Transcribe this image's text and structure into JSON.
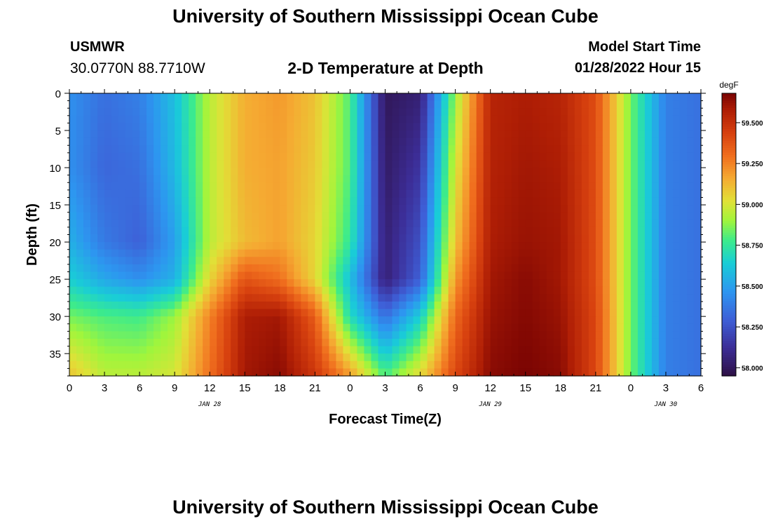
{
  "title": "University of Southern Mississippi Ocean Cube",
  "footer_title": "University of Southern Mississippi Ocean Cube",
  "station": {
    "id": "USMWR",
    "coords": "30.0770N  88.7710W"
  },
  "subtitle": "2-D Temperature at Depth",
  "model_start": {
    "label": "Model Start Time",
    "value": "01/28/2022 Hour 15"
  },
  "chart_data": {
    "type": "heatmap",
    "title": "2-D Temperature at Depth",
    "xlabel": "Forecast Time(Z)",
    "ylabel": "Depth (ft)",
    "units_label": "degF",
    "x_range": [
      0,
      54
    ],
    "y_range": [
      0,
      38
    ],
    "x_ticks": [
      {
        "h": 0,
        "label": "0"
      },
      {
        "h": 3,
        "label": "3"
      },
      {
        "h": 6,
        "label": "6"
      },
      {
        "h": 9,
        "label": "9"
      },
      {
        "h": 12,
        "label": "12"
      },
      {
        "h": 15,
        "label": "15"
      },
      {
        "h": 18,
        "label": "18"
      },
      {
        "h": 21,
        "label": "21"
      },
      {
        "h": 24,
        "label": "0"
      },
      {
        "h": 27,
        "label": "3"
      },
      {
        "h": 30,
        "label": "6"
      },
      {
        "h": 33,
        "label": "9"
      },
      {
        "h": 36,
        "label": "12"
      },
      {
        "h": 39,
        "label": "15"
      },
      {
        "h": 42,
        "label": "18"
      },
      {
        "h": 45,
        "label": "21"
      },
      {
        "h": 48,
        "label": "0"
      },
      {
        "h": 51,
        "label": "3"
      },
      {
        "h": 54,
        "label": "6"
      }
    ],
    "date_labels": [
      {
        "h": 12,
        "label": "JAN 28"
      },
      {
        "h": 36,
        "label": "JAN 29"
      },
      {
        "h": 51,
        "label": "JAN 30"
      }
    ],
    "y_ticks": [
      0,
      5,
      10,
      15,
      20,
      25,
      30,
      35
    ],
    "colorbar": {
      "min": 57.95,
      "max": 59.68,
      "ticks": [
        {
          "v": 58.0,
          "label": "58.000"
        },
        {
          "v": 58.25,
          "label": "58.250"
        },
        {
          "v": 58.5,
          "label": "58.500"
        },
        {
          "v": 58.75,
          "label": "58.750"
        },
        {
          "v": 59.0,
          "label": "59.000"
        },
        {
          "v": 59.25,
          "label": "59.250"
        },
        {
          "v": 59.5,
          "label": "59.500"
        }
      ]
    },
    "depths": [
      0,
      10,
      20,
      25,
      30,
      38
    ],
    "grid_times": [
      0,
      3,
      6,
      9,
      12,
      15,
      18,
      21,
      24,
      27,
      30,
      33,
      36,
      39,
      42,
      45,
      48,
      51,
      54
    ],
    "temperatures": [
      [
        58.45,
        58.35,
        58.4,
        58.6,
        58.95,
        59.15,
        59.2,
        59.1,
        58.8,
        58.0,
        58.05,
        58.9,
        59.55,
        59.58,
        59.55,
        59.4,
        58.85,
        58.4,
        58.35
      ],
      [
        58.45,
        58.32,
        58.35,
        58.58,
        58.95,
        59.15,
        59.18,
        59.08,
        58.8,
        58.02,
        58.15,
        59.0,
        59.56,
        59.6,
        59.58,
        59.4,
        58.85,
        58.4,
        58.35
      ],
      [
        58.55,
        58.38,
        58.3,
        58.5,
        58.95,
        59.12,
        59.18,
        59.05,
        58.75,
        58.05,
        58.25,
        59.1,
        59.58,
        59.62,
        59.6,
        59.4,
        58.85,
        58.4,
        58.35
      ],
      [
        58.65,
        58.52,
        58.45,
        58.55,
        59.05,
        59.38,
        59.3,
        59.05,
        58.6,
        58.05,
        58.3,
        59.2,
        59.6,
        59.65,
        59.6,
        59.4,
        58.85,
        58.4,
        58.35
      ],
      [
        58.85,
        58.8,
        58.78,
        58.9,
        59.25,
        59.58,
        59.6,
        59.35,
        58.7,
        58.35,
        58.65,
        59.32,
        59.62,
        59.66,
        59.62,
        59.42,
        58.85,
        58.4,
        58.35
      ],
      [
        59.1,
        58.95,
        58.95,
        59.0,
        59.3,
        59.6,
        59.65,
        59.48,
        59.2,
        58.8,
        59.05,
        59.42,
        59.65,
        59.68,
        59.65,
        59.42,
        58.85,
        58.4,
        58.35
      ]
    ]
  }
}
